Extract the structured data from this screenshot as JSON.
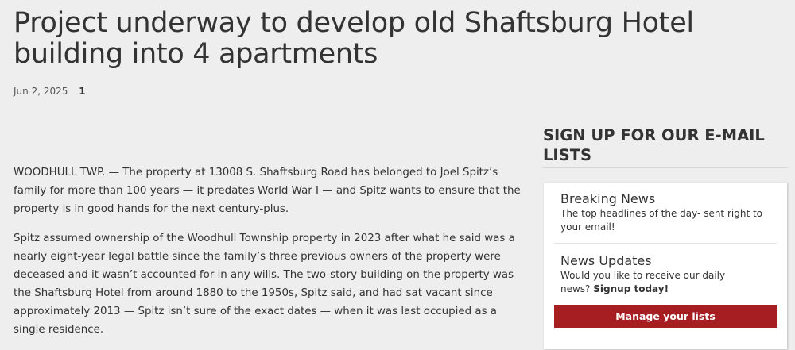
{
  "article": {
    "title": "Project underway to develop old Shaftsburg Hotel building into 4 apartments",
    "date": "Jun 2, 2025",
    "comment_count": "1",
    "paragraphs": [
      "WOODHULL TWP. — The property at 13008 S. Shaftsburg Road has belonged to Joel Spitz’s family for more than 100 years — it predates World War I — and Spitz wants to ensure that the property is in good hands for the next century-plus.",
      "Spitz assumed ownership of the Woodhull Township property in 2023 after what he said was a nearly eight-year legal battle since the family’s three previous owners of the property were deceased and it wasn’t accounted for in any wills. The two-story building on the property was the Shaftsburg Hotel from around 1880 to the 1950s, Spitz said, and had sat vacant since approximately 2013 — Spitz isn’t sure of the exact dates — when it was last occupied as a single residence."
    ]
  },
  "sidebar": {
    "title": "SIGN UP FOR OUR E-MAIL LISTS",
    "items": [
      {
        "title": "Breaking News",
        "desc": "The top headlines of the day- sent right to your email!"
      },
      {
        "title": "News Updates",
        "desc": "Would you like to receive our daily news?",
        "link": "Signup today!"
      }
    ],
    "button_label": "Manage your lists",
    "accent_color": "#a61e22"
  }
}
